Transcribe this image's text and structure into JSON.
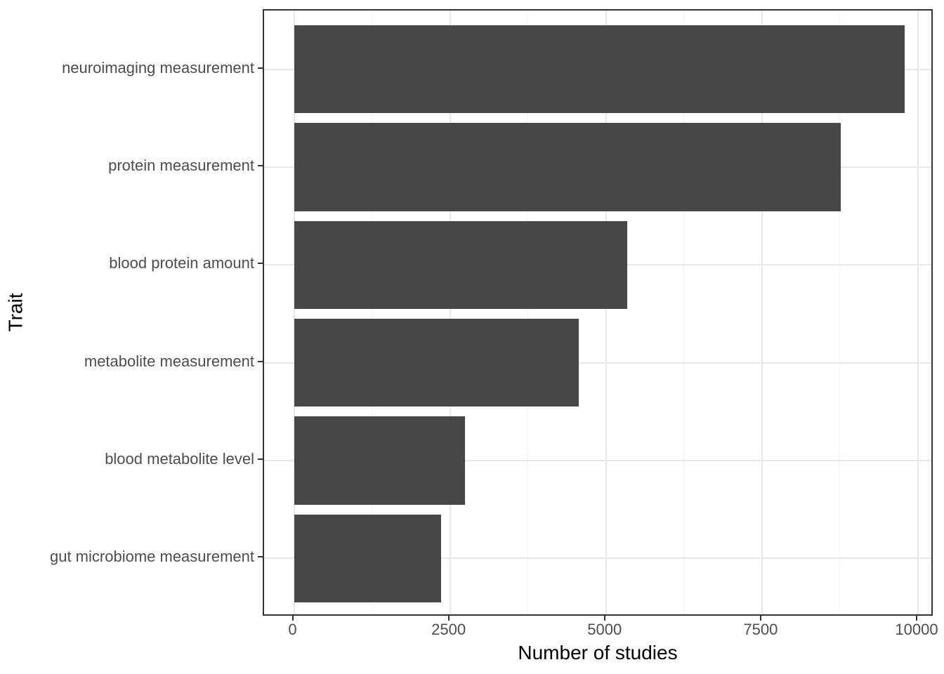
{
  "chart_data": {
    "type": "bar",
    "orientation": "horizontal",
    "title": "",
    "xlabel": "Number of studies",
    "ylabel": "Trait",
    "categories": [
      "neuroimaging measurement",
      "protein measurement",
      "blood protein amount",
      "metabolite measurement",
      "blood metabolite level",
      "gut microbiome measurement"
    ],
    "values": [
      9790,
      8760,
      5340,
      4560,
      2740,
      2360
    ],
    "xlim": [
      0,
      10000
    ],
    "x_major_ticks": [
      0,
      2500,
      5000,
      7500,
      10000
    ],
    "x_tick_labels": [
      "0",
      "2500",
      "5000",
      "7500",
      "10000"
    ],
    "x_minor_gridlines": [
      1250,
      3750,
      6250,
      8750
    ],
    "grid": "on",
    "legend": "none",
    "bar_width_fraction": 0.9,
    "colors": {
      "bar_fill": "#474747",
      "panel_border": "#333333",
      "grid_major": "#e8e8e8",
      "grid_minor": "#f3f3f3",
      "tick_mark": "#333333",
      "axis_text": "#4d4d4d",
      "axis_title": "#000000",
      "panel_background": "#ffffff",
      "figure_background": "#ffffff"
    }
  }
}
